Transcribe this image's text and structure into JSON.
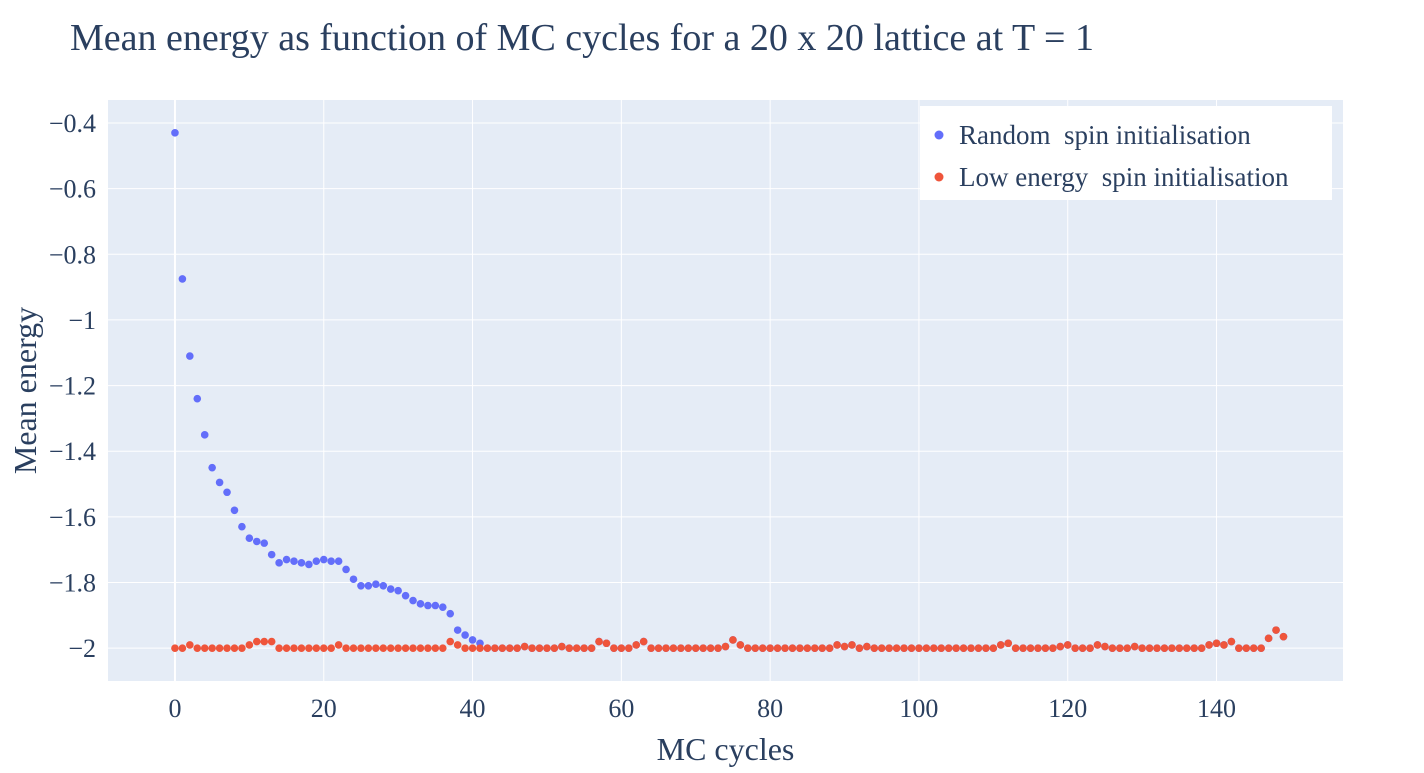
{
  "chart_data": {
    "type": "scatter",
    "title": "Mean energy as function of MC cycles for a 20 x 20 lattice at T = 1",
    "xlabel": "MC cycles",
    "ylabel": "Mean energy",
    "xlim": [
      -9,
      157
    ],
    "ylim": [
      -2.1,
      -0.33
    ],
    "xticks": [
      0,
      20,
      40,
      60,
      80,
      100,
      120,
      140
    ],
    "yticks": [
      -0.4,
      -0.6,
      -0.8,
      -1,
      -1.2,
      -1.4,
      -1.6,
      -1.8,
      -2
    ],
    "xtick_labels": [
      "0",
      "20",
      "40",
      "60",
      "80",
      "100",
      "120",
      "140"
    ],
    "ytick_labels": [
      "−0.4",
      "−0.6",
      "−0.8",
      "−1",
      "−1.2",
      "−1.4",
      "−1.6",
      "−1.8",
      "−2"
    ],
    "grid": true,
    "legend_position": "top-right",
    "background": "#e5ecf6",
    "series": [
      {
        "name": "Random  spin initialisation",
        "color": "#636efa",
        "x": [
          0,
          1,
          2,
          3,
          4,
          5,
          6,
          7,
          8,
          9,
          10,
          11,
          12,
          13,
          14,
          15,
          16,
          17,
          18,
          19,
          20,
          21,
          22,
          23,
          24,
          25,
          26,
          27,
          28,
          29,
          30,
          31,
          32,
          33,
          34,
          35,
          36,
          37,
          38,
          39,
          40,
          41,
          42,
          43,
          44,
          45,
          46,
          47,
          48,
          49,
          50,
          51,
          52,
          53,
          54,
          55,
          56,
          57,
          58,
          59,
          60,
          61,
          62,
          63,
          64,
          65,
          66,
          67,
          68,
          69,
          70,
          71,
          72,
          73,
          74,
          75,
          76,
          77,
          78,
          79,
          80,
          81,
          82,
          83,
          84,
          85,
          86,
          87,
          88,
          89,
          90,
          91,
          92,
          93,
          94,
          95,
          96,
          97,
          98,
          99,
          100,
          101,
          102,
          103,
          104,
          105,
          106,
          107,
          108,
          109,
          110,
          111,
          112,
          113,
          114,
          115,
          116,
          117,
          118,
          119,
          120,
          121,
          122,
          123,
          124,
          125,
          126,
          127,
          128,
          129,
          130,
          131,
          132,
          133,
          134,
          135,
          136,
          137,
          138,
          139,
          140,
          141,
          142,
          143,
          144,
          145,
          146,
          147,
          148,
          149
        ],
        "y": [
          -0.43,
          -0.875,
          -1.11,
          -1.24,
          -1.35,
          -1.45,
          -1.495,
          -1.525,
          -1.58,
          -1.63,
          -1.665,
          -1.675,
          -1.68,
          -1.715,
          -1.74,
          -1.73,
          -1.735,
          -1.74,
          -1.745,
          -1.735,
          -1.73,
          -1.735,
          -1.735,
          -1.76,
          -1.79,
          -1.81,
          -1.81,
          -1.805,
          -1.81,
          -1.82,
          -1.825,
          -1.84,
          -1.855,
          -1.865,
          -1.87,
          -1.87,
          -1.875,
          -1.895,
          -1.945,
          -1.96,
          -1.975,
          -1.985,
          -2.0,
          -2.0,
          -2.0,
          -2.0,
          -2.0,
          -1.995,
          -2.0,
          -2.0,
          -2.0,
          -2.0,
          -1.995,
          -2.0,
          -2.0,
          -2.0,
          -2.0,
          -1.98,
          -1.985,
          -2.0,
          -2.0,
          -2.0,
          -1.99,
          -1.98,
          -2.0,
          -2.0,
          -2.0,
          -2.0,
          -2.0,
          -2.0,
          -2.0,
          -2.0,
          -2.0,
          -2.0,
          -1.995,
          -1.975,
          -1.99,
          -2.0,
          -2.0,
          -2.0,
          -2.0,
          -2.0,
          -2.0,
          -2.0,
          -2.0,
          -2.0,
          -2.0,
          -2.0,
          -2.0,
          -1.99,
          -1.995,
          -1.99,
          -2.0,
          -1.995,
          -2.0,
          -2.0,
          -2.0,
          -2.0,
          -2.0,
          -2.0,
          -2.0,
          -2.0,
          -2.0,
          -2.0,
          -2.0,
          -2.0,
          -2.0,
          -2.0,
          -2.0,
          -2.0,
          -2.0,
          -1.99,
          -1.985,
          -2.0,
          -2.0,
          -2.0,
          -2.0,
          -2.0,
          -2.0,
          -1.995,
          -1.99,
          -2.0,
          -2.0,
          -2.0,
          -1.99,
          -1.995,
          -2.0,
          -2.0,
          -2.0,
          -1.995,
          -2.0,
          -2.0,
          -2.0,
          -2.0,
          -2.0,
          -2.0,
          -2.0,
          -2.0,
          -2.0,
          -1.99,
          -1.985,
          -1.99,
          -1.98,
          -2.0,
          -2.0,
          -2.0,
          -2.0,
          -1.97,
          -1.945,
          -1.965
        ]
      },
      {
        "name": "Low energy  spin initialisation",
        "color": "#ef553b",
        "x": [
          0,
          1,
          2,
          3,
          4,
          5,
          6,
          7,
          8,
          9,
          10,
          11,
          12,
          13,
          14,
          15,
          16,
          17,
          18,
          19,
          20,
          21,
          22,
          23,
          24,
          25,
          26,
          27,
          28,
          29,
          30,
          31,
          32,
          33,
          34,
          35,
          36,
          37,
          38,
          39,
          40,
          41,
          42,
          43,
          44,
          45,
          46,
          47,
          48,
          49,
          50,
          51,
          52,
          53,
          54,
          55,
          56,
          57,
          58,
          59,
          60,
          61,
          62,
          63,
          64,
          65,
          66,
          67,
          68,
          69,
          70,
          71,
          72,
          73,
          74,
          75,
          76,
          77,
          78,
          79,
          80,
          81,
          82,
          83,
          84,
          85,
          86,
          87,
          88,
          89,
          90,
          91,
          92,
          93,
          94,
          95,
          96,
          97,
          98,
          99,
          100,
          101,
          102,
          103,
          104,
          105,
          106,
          107,
          108,
          109,
          110,
          111,
          112,
          113,
          114,
          115,
          116,
          117,
          118,
          119,
          120,
          121,
          122,
          123,
          124,
          125,
          126,
          127,
          128,
          129,
          130,
          131,
          132,
          133,
          134,
          135,
          136,
          137,
          138,
          139,
          140,
          141,
          142,
          143,
          144,
          145,
          146,
          147,
          148,
          149
        ],
        "y": [
          -2.0,
          -2.0,
          -1.99,
          -2.0,
          -2.0,
          -2.0,
          -2.0,
          -2.0,
          -2.0,
          -2.0,
          -1.99,
          -1.98,
          -1.98,
          -1.98,
          -2.0,
          -2.0,
          -2.0,
          -2.0,
          -2.0,
          -2.0,
          -2.0,
          -2.0,
          -1.99,
          -2.0,
          -2.0,
          -2.0,
          -2.0,
          -2.0,
          -2.0,
          -2.0,
          -2.0,
          -2.0,
          -2.0,
          -2.0,
          -2.0,
          -2.0,
          -2.0,
          -1.98,
          -1.99,
          -2.0,
          -2.0,
          -2.0,
          -2.0,
          -2.0,
          -2.0,
          -2.0,
          -2.0,
          -1.995,
          -2.0,
          -2.0,
          -2.0,
          -2.0,
          -1.995,
          -2.0,
          -2.0,
          -2.0,
          -2.0,
          -1.98,
          -1.985,
          -2.0,
          -2.0,
          -2.0,
          -1.99,
          -1.98,
          -2.0,
          -2.0,
          -2.0,
          -2.0,
          -2.0,
          -2.0,
          -2.0,
          -2.0,
          -2.0,
          -2.0,
          -1.995,
          -1.975,
          -1.99,
          -2.0,
          -2.0,
          -2.0,
          -2.0,
          -2.0,
          -2.0,
          -2.0,
          -2.0,
          -2.0,
          -2.0,
          -2.0,
          -2.0,
          -1.99,
          -1.995,
          -1.99,
          -2.0,
          -1.995,
          -2.0,
          -2.0,
          -2.0,
          -2.0,
          -2.0,
          -2.0,
          -2.0,
          -2.0,
          -2.0,
          -2.0,
          -2.0,
          -2.0,
          -2.0,
          -2.0,
          -2.0,
          -2.0,
          -2.0,
          -1.99,
          -1.985,
          -2.0,
          -2.0,
          -2.0,
          -2.0,
          -2.0,
          -2.0,
          -1.995,
          -1.99,
          -2.0,
          -2.0,
          -2.0,
          -1.99,
          -1.995,
          -2.0,
          -2.0,
          -2.0,
          -1.995,
          -2.0,
          -2.0,
          -2.0,
          -2.0,
          -2.0,
          -2.0,
          -2.0,
          -2.0,
          -2.0,
          -1.99,
          -1.985,
          -1.99,
          -1.98,
          -2.0,
          -2.0,
          -2.0,
          -2.0,
          -1.97,
          -1.945,
          -1.965
        ]
      }
    ]
  }
}
